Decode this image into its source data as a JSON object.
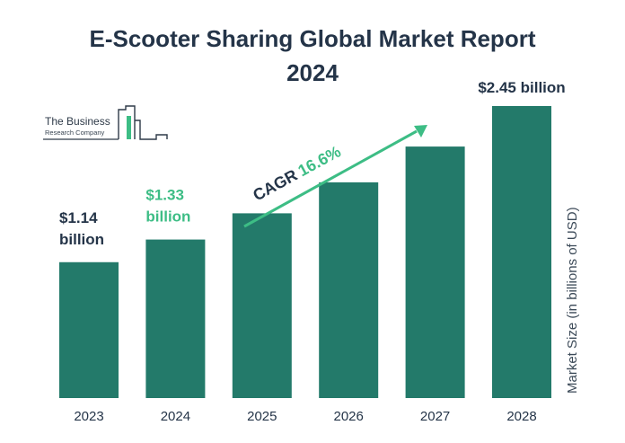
{
  "chart_data": {
    "type": "bar",
    "title_line1": "E-Scooter Sharing Global Market Report",
    "title_line2": "2024",
    "ylabel": "Market Size (in billions of USD)",
    "categories": [
      "2023",
      "2024",
      "2025",
      "2026",
      "2027",
      "2028"
    ],
    "values": [
      1.14,
      1.33,
      1.55,
      1.81,
      2.11,
      2.45
    ],
    "value_labels": [
      {
        "index": 0,
        "line1": "$1.14",
        "line2": "billion",
        "color": "#243448"
      },
      {
        "index": 1,
        "line1": "$1.33",
        "line2": "billion",
        "color": "#3dbd85"
      },
      {
        "index": 5,
        "line1": "$2.45 billion",
        "line2": "",
        "color": "#243448"
      }
    ],
    "cagr_label": "CAGR",
    "cagr_value": "16.6%",
    "bar_color": "#237a6a",
    "accent_color": "#3dbd85",
    "text_color": "#243448",
    "grid": false
  },
  "logo": {
    "line1": "The Business",
    "line2": "Research Company"
  }
}
